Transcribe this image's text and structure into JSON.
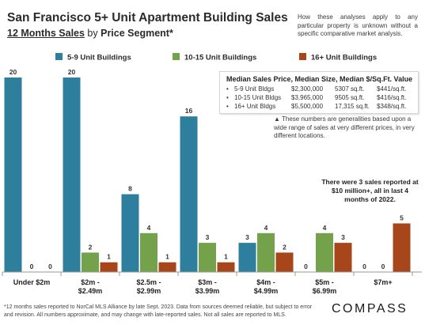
{
  "header": {
    "title": "San Francisco 5+ Unit Apartment Building Sales",
    "subtitle_underlined": "12 Months Sales",
    "subtitle_middle": " by ",
    "subtitle_bold": "Price Segment*",
    "note": "How these analyses apply to any particular property is unknown without a specific comparative market analysis."
  },
  "info_box": {
    "heading": "Median Sales Price, Median Size, Median $/Sq.Ft. Value",
    "rows": [
      {
        "label": "5-9 Unit Bldgs",
        "price": "$2,300,000",
        "size": "5307 sq.ft.",
        "ppsf": "$441/sq.ft."
      },
      {
        "label": "10-15 Unit Bldgs",
        "price": "$3,965,000",
        "size": "9505 sq.ft.",
        "ppsf": "$416/sq.ft."
      },
      {
        "label": "16+ Unit Bldgs",
        "price": "$5,500,000",
        "size": "17,315 sq.ft.",
        "ppsf": "$348/sq.ft."
      }
    ],
    "bullet": "•"
  },
  "general_note": "▲ These numbers are generalities based upon a wide range of sales at very different prices, in very different locations.",
  "callout": "There were 3 sales reported at $10 million+, all in last 4 months of 2022.",
  "footer": "*12 months sales reported to NorCal MLS Alliance by late Sept. 2023. Data from sources deemed reliable, but subject to error and revision. All numbers approximate, and may change with late-reported sales. Not all sales are reported to MLS.",
  "brand": "COMPASS",
  "colors": {
    "series_1": "#2e7e9e",
    "series_2": "#73a24a",
    "series_3": "#a8461b",
    "value_label": "#333333",
    "axis": "#999999"
  },
  "chart_data": {
    "type": "bar",
    "categories": [
      "Under $2m",
      "$2m - $2.49m",
      "$2.5m - $2.99m",
      "$3m - $3.99m",
      "$4m - $4.99m",
      "$5m - $6.99m",
      "$7m+"
    ],
    "series": [
      {
        "name": "5-9 Unit Buildings",
        "values": [
          20,
          20,
          8,
          16,
          3,
          0,
          0
        ]
      },
      {
        "name": "10-15 Unit Buildings",
        "values": [
          0,
          2,
          4,
          3,
          4,
          4,
          0
        ]
      },
      {
        "name": "16+ Unit Buildings",
        "values": [
          0,
          1,
          1,
          1,
          2,
          3,
          5
        ]
      }
    ],
    "ylim": [
      0,
      20
    ],
    "grid": false,
    "legend": "top"
  }
}
